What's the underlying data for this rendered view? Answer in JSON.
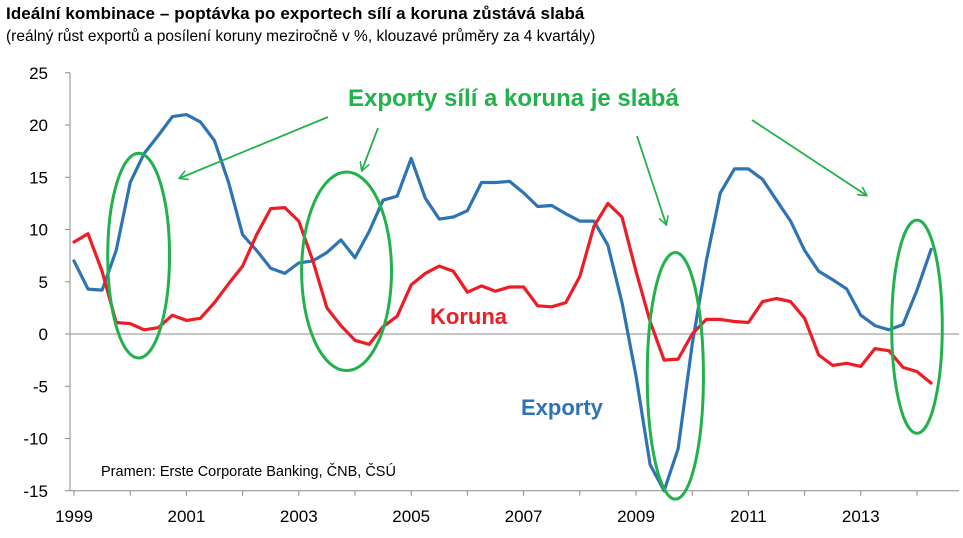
{
  "title": "Ideální kombinace – poptávka po exportech sílí a koruna zůstává slabá",
  "subtitle": "(reálný růst exportů a posílení koruny meziročně v %, klouzavé průměry za 4 kvartály)",
  "chart_data": {
    "type": "line",
    "ylim": [
      -15,
      25
    ],
    "yticks": [
      25,
      20,
      15,
      10,
      5,
      0,
      -5,
      -10,
      -15
    ],
    "xlim": [
      1999,
      2014.75
    ],
    "xticks": [
      "1999",
      "2001",
      "2003",
      "2005",
      "2007",
      "2009",
      "2011",
      "2013"
    ],
    "grid": false,
    "series": [
      {
        "name": "Exporty",
        "color": "#2e74b5",
        "points": [
          [
            1999.0,
            7.0
          ],
          [
            1999.25,
            4.3
          ],
          [
            1999.5,
            4.2
          ],
          [
            1999.75,
            8.0
          ],
          [
            2000.0,
            14.5
          ],
          [
            2000.25,
            17.3
          ],
          [
            2000.5,
            19.0
          ],
          [
            2000.75,
            20.8
          ],
          [
            2001.0,
            21.0
          ],
          [
            2001.25,
            20.3
          ],
          [
            2001.5,
            18.5
          ],
          [
            2001.75,
            14.5
          ],
          [
            2002.0,
            9.5
          ],
          [
            2002.25,
            8.0
          ],
          [
            2002.5,
            6.3
          ],
          [
            2002.75,
            5.8
          ],
          [
            2003.0,
            6.8
          ],
          [
            2003.25,
            7.0
          ],
          [
            2003.5,
            7.8
          ],
          [
            2003.75,
            9.0
          ],
          [
            2004.0,
            7.3
          ],
          [
            2004.25,
            9.8
          ],
          [
            2004.5,
            12.8
          ],
          [
            2004.75,
            13.2
          ],
          [
            2005.0,
            16.8
          ],
          [
            2005.25,
            13.0
          ],
          [
            2005.5,
            11.0
          ],
          [
            2005.75,
            11.2
          ],
          [
            2006.0,
            11.8
          ],
          [
            2006.25,
            14.5
          ],
          [
            2006.5,
            14.5
          ],
          [
            2006.75,
            14.6
          ],
          [
            2007.0,
            13.5
          ],
          [
            2007.25,
            12.2
          ],
          [
            2007.5,
            12.3
          ],
          [
            2007.75,
            11.5
          ],
          [
            2008.0,
            10.8
          ],
          [
            2008.25,
            10.8
          ],
          [
            2008.5,
            8.5
          ],
          [
            2008.75,
            3.0
          ],
          [
            2009.0,
            -4.0
          ],
          [
            2009.25,
            -12.5
          ],
          [
            2009.5,
            -15.0
          ],
          [
            2009.75,
            -11.0
          ],
          [
            2010.0,
            -1.0
          ],
          [
            2010.25,
            7.0
          ],
          [
            2010.5,
            13.5
          ],
          [
            2010.75,
            15.8
          ],
          [
            2011.0,
            15.8
          ],
          [
            2011.25,
            14.8
          ],
          [
            2011.5,
            12.8
          ],
          [
            2011.75,
            10.8
          ],
          [
            2012.0,
            8.0
          ],
          [
            2012.25,
            6.0
          ],
          [
            2012.5,
            5.2
          ],
          [
            2012.75,
            4.3
          ],
          [
            2013.0,
            1.8
          ],
          [
            2013.25,
            0.8
          ],
          [
            2013.5,
            0.4
          ],
          [
            2013.75,
            0.9
          ],
          [
            2014.0,
            4.2
          ],
          [
            2014.25,
            8.1
          ]
        ]
      },
      {
        "name": "Koruna",
        "color": "#ee1c25",
        "points": [
          [
            1999.0,
            8.8
          ],
          [
            1999.25,
            9.6
          ],
          [
            1999.5,
            6.0
          ],
          [
            1999.75,
            1.1
          ],
          [
            2000.0,
            1.0
          ],
          [
            2000.25,
            0.4
          ],
          [
            2000.5,
            0.6
          ],
          [
            2000.75,
            1.8
          ],
          [
            2001.0,
            1.3
          ],
          [
            2001.25,
            1.5
          ],
          [
            2001.5,
            3.0
          ],
          [
            2001.75,
            4.8
          ],
          [
            2002.0,
            6.5
          ],
          [
            2002.25,
            9.5
          ],
          [
            2002.5,
            12.0
          ],
          [
            2002.75,
            12.1
          ],
          [
            2003.0,
            10.8
          ],
          [
            2003.25,
            7.0
          ],
          [
            2003.5,
            2.5
          ],
          [
            2003.75,
            0.8
          ],
          [
            2004.0,
            -0.6
          ],
          [
            2004.25,
            -1.0
          ],
          [
            2004.5,
            0.7
          ],
          [
            2004.75,
            1.7
          ],
          [
            2005.0,
            4.7
          ],
          [
            2005.25,
            5.8
          ],
          [
            2005.5,
            6.5
          ],
          [
            2005.75,
            6.0
          ],
          [
            2006.0,
            4.0
          ],
          [
            2006.25,
            4.6
          ],
          [
            2006.5,
            4.1
          ],
          [
            2006.75,
            4.5
          ],
          [
            2007.0,
            4.5
          ],
          [
            2007.25,
            2.7
          ],
          [
            2007.5,
            2.6
          ],
          [
            2007.75,
            3.0
          ],
          [
            2008.0,
            5.5
          ],
          [
            2008.25,
            10.3
          ],
          [
            2008.5,
            12.5
          ],
          [
            2008.75,
            11.2
          ],
          [
            2009.0,
            6.0
          ],
          [
            2009.25,
            1.2
          ],
          [
            2009.5,
            -2.5
          ],
          [
            2009.75,
            -2.4
          ],
          [
            2010.0,
            0.0
          ],
          [
            2010.25,
            1.4
          ],
          [
            2010.5,
            1.4
          ],
          [
            2010.75,
            1.2
          ],
          [
            2011.0,
            1.1
          ],
          [
            2011.25,
            3.1
          ],
          [
            2011.5,
            3.4
          ],
          [
            2011.75,
            3.1
          ],
          [
            2012.0,
            1.5
          ],
          [
            2012.25,
            -2.0
          ],
          [
            2012.5,
            -3.0
          ],
          [
            2012.75,
            -2.8
          ],
          [
            2013.0,
            -3.1
          ],
          [
            2013.25,
            -1.4
          ],
          [
            2013.5,
            -1.6
          ],
          [
            2013.75,
            -3.2
          ],
          [
            2014.0,
            -3.6
          ],
          [
            2014.25,
            -4.7
          ]
        ]
      }
    ],
    "series_labels": {
      "koruna": "Koruna",
      "exporty": "Exporty"
    },
    "annotation": "Exporty sílí a koruna je slabá",
    "source": "Pramen: Erste Corporate Banking, ČNB, ČSÚ",
    "highlight_ellipses": [
      {
        "x_center": 2000.15,
        "y_center": 7.5,
        "x_radius": 0.55,
        "y_radius": 9.8
      },
      {
        "x_center": 2003.85,
        "y_center": 6.0,
        "x_radius": 0.8,
        "y_radius": 9.5
      },
      {
        "x_center": 2009.7,
        "y_center": -4.0,
        "x_radius": 0.5,
        "y_radius": 11.8
      },
      {
        "x_center": 2014.0,
        "y_center": 0.7,
        "x_radius": 0.45,
        "y_radius": 10.2
      }
    ],
    "highlight_color": "#22b24c"
  }
}
